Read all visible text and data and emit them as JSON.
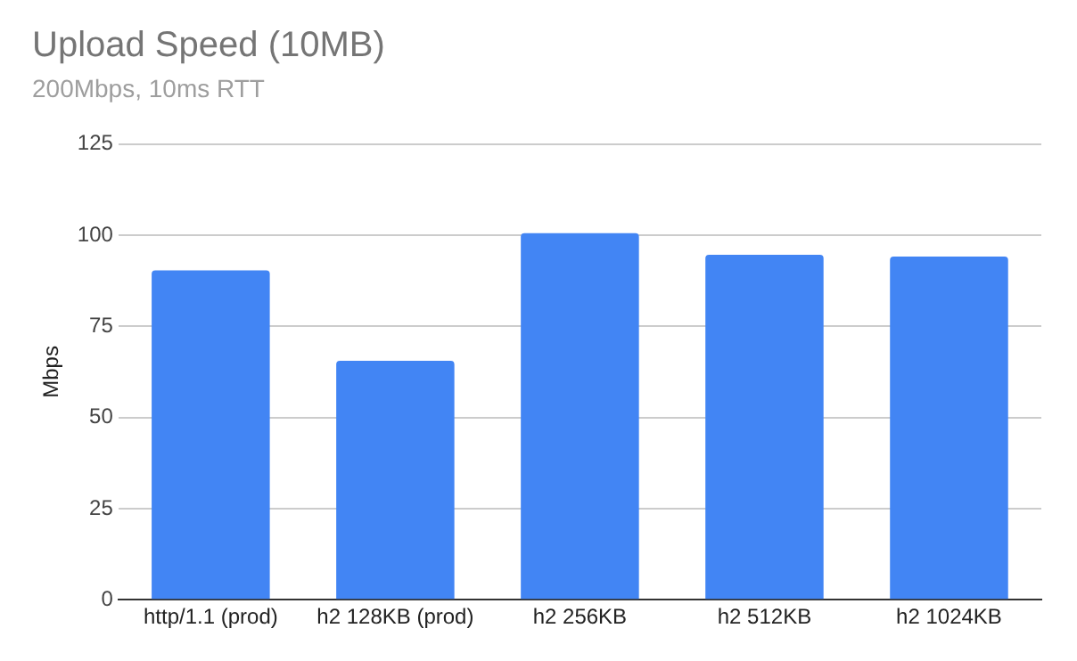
{
  "chart_data": {
    "type": "bar",
    "title": "Upload Speed (10MB)",
    "subtitle": "200Mbps, 10ms RTT",
    "ylabel": "Mbps",
    "categories": [
      "http/1.1 (prod)",
      "h2 128KB (prod)",
      "h2 256KB",
      "h2 512KB",
      "h2 1024KB"
    ],
    "values": [
      90.3,
      65.5,
      100.5,
      94.6,
      94.1
    ],
    "color": "#4285f4",
    "ylim": [
      0,
      125
    ],
    "yticks": [
      0,
      25,
      50,
      75,
      100,
      125
    ],
    "grid": "y",
    "legend": false
  }
}
